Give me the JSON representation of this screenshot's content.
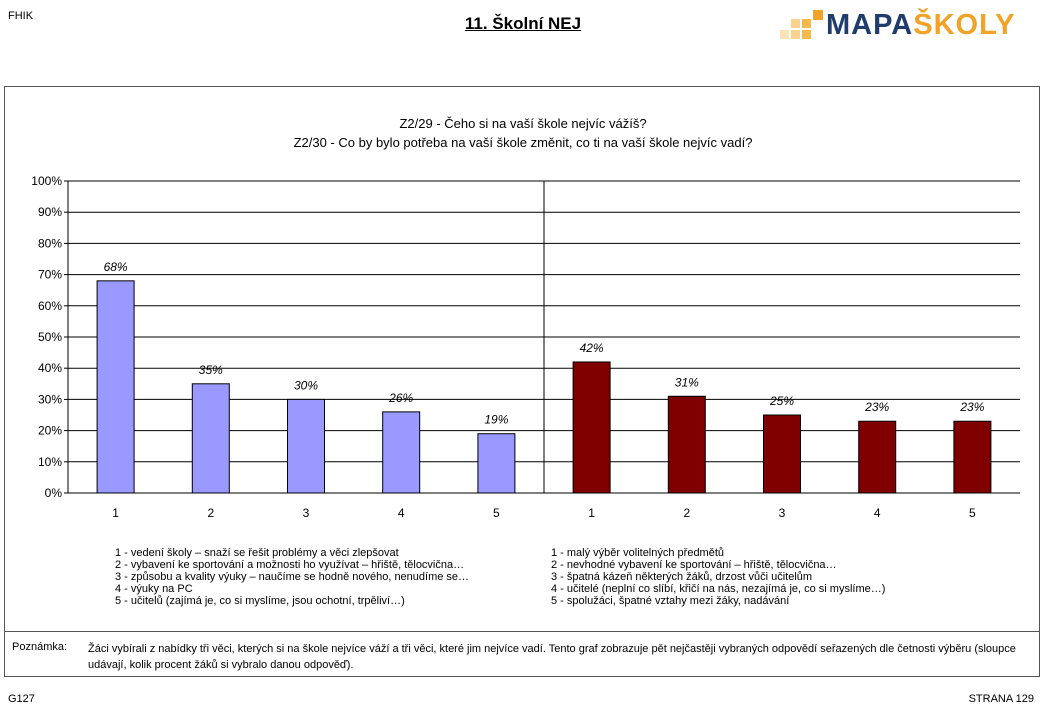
{
  "header": {
    "school_code": "FHIK",
    "title": "11. Školní NEJ",
    "logo_part1": "MAPA",
    "logo_part2": "ŠKOLY"
  },
  "chart_title_line1": "Z2/29 - Čeho si na vaší škole nejvíc vážíš?",
  "chart_title_line2": "Z2/30 - Co by bylo potřeba na vaší škole změnit, co ti na vaší škole nejvíc vadí?",
  "chart_data": {
    "type": "bar",
    "ylim": [
      0,
      100
    ],
    "yticks": [
      "0%",
      "10%",
      "20%",
      "30%",
      "40%",
      "50%",
      "60%",
      "70%",
      "80%",
      "90%",
      "100%"
    ],
    "grid": true,
    "groups": [
      {
        "categories": [
          "1",
          "2",
          "3",
          "4",
          "5"
        ],
        "values": [
          68,
          35,
          30,
          26,
          19
        ],
        "labels": [
          "68%",
          "35%",
          "30%",
          "26%",
          "19%"
        ],
        "color": "#9999ff"
      },
      {
        "categories": [
          "1",
          "2",
          "3",
          "4",
          "5"
        ],
        "values": [
          42,
          31,
          25,
          23,
          23
        ],
        "labels": [
          "42%",
          "31%",
          "25%",
          "23%",
          "23%"
        ],
        "color": "#800000"
      }
    ]
  },
  "legend_left": [
    "1 - vedení školy – snaží se řešit problémy a věci zlepšovat",
    "2 - vybavení ke sportování a možnosti ho využívat – hřiště, tělocvična…",
    "3 - způsobu a kvality výuky – naučíme se hodně nového, nenudíme se…",
    "4 - výuky na PC",
    "5 - učitelů (zajímá je, co si myslíme, jsou ochotní, trpěliví…)"
  ],
  "legend_right": [
    "1 - malý výběr volitelných předmětů",
    "2 - nevhodné vybavení ke sportování – hřiště, tělocvična…",
    "3 - špatná kázeň některých žáků, drzost vůči učitelům",
    "4 - učitelé (neplní co slíbí, křičí na nás, nezajímá je, co si myslíme…)",
    "5 - spolužáci, špatné vztahy mezi žáky, nadávání"
  ],
  "note": {
    "label": "Poznámka:",
    "text": "Žáci vybírali z nabídky tři věci, kterých si na škole nejvíce váží a tři věci, které jim nejvíce vadí. Tento graf zobrazuje pět nejčastěji vybraných odpovědí seřazených dle četnosti výběru (sloupce udávají, kolik procent žáků si vybralo danou odpověď)."
  },
  "footer": {
    "code": "G127",
    "page": "STRANA 129"
  }
}
